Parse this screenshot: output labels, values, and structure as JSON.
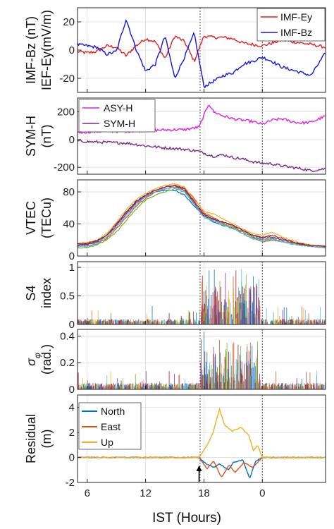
{
  "figure": {
    "xlabel": "IST (Hours)",
    "xticks": [
      "6",
      "12",
      "18",
      "0"
    ],
    "xtick_hours": [
      6,
      12,
      18,
      24
    ],
    "x_range": [
      5,
      30.5
    ],
    "event_lines_hours": [
      17.6,
      24.0
    ],
    "arrow_hour": 17.5
  },
  "colors": {
    "imf_ey": "#e01f1f",
    "imf_bz": "#1414e0",
    "asy_h": "#e01fe0",
    "sym_h": "#7a2a8c",
    "north": "#0072bd",
    "east": "#d95319",
    "up": "#edb120",
    "vtec_palette": [
      "#0072bd",
      "#d95319",
      "#edb120",
      "#7e2f8e",
      "#77ac30",
      "#4dbeee",
      "#a2142f"
    ]
  },
  "chart_data": [
    {
      "id": "imf",
      "type": "line",
      "ylabel_lines": [
        "IMF-Bz (nT)",
        "IEF-Ey(mV/m)"
      ],
      "ylim": [
        -30,
        30
      ],
      "yticks": [
        -20,
        0,
        20
      ],
      "legend_position": "top-right",
      "series": [
        {
          "name": "IMF-Ey",
          "color_key": "imf_ey",
          "x": [
            5,
            6,
            7,
            8,
            9,
            10,
            11,
            12,
            13,
            14,
            15,
            16,
            17,
            18,
            19,
            20,
            21,
            22,
            23,
            24,
            25,
            26,
            27,
            28,
            29,
            30.5
          ],
          "y": [
            -1,
            -2,
            -1,
            3,
            2,
            -4,
            3,
            8,
            6,
            -6,
            10,
            6,
            -8,
            10,
            9,
            9,
            8,
            5,
            4,
            3,
            5,
            7,
            6,
            5,
            4,
            2
          ]
        },
        {
          "name": "IMF-Bz",
          "color_key": "imf_bz",
          "x": [
            5,
            6,
            7,
            8,
            9,
            10,
            11,
            12,
            13,
            14,
            15,
            16,
            17,
            18,
            19,
            20,
            21,
            22,
            23,
            24,
            25,
            26,
            27,
            28,
            29,
            30.5
          ],
          "y": [
            4,
            3,
            2,
            -3,
            -1,
            22,
            1,
            -15,
            -10,
            10,
            -20,
            -5,
            12,
            -26,
            -22,
            -18,
            -16,
            -10,
            -8,
            -5,
            -8,
            -12,
            -14,
            -16,
            -18,
            -2
          ]
        }
      ]
    },
    {
      "id": "sym",
      "type": "line",
      "ylabel_lines": [
        "SYM-H",
        "(nT)"
      ],
      "ylim": [
        -250,
        300
      ],
      "yticks": [
        -200,
        0,
        200
      ],
      "legend_position": "top-left",
      "series": [
        {
          "name": "ASY-H",
          "color_key": "asy_h",
          "x": [
            5,
            6,
            8,
            10,
            12,
            14,
            16,
            17.5,
            18.5,
            19,
            20,
            21,
            22,
            23,
            24,
            25,
            26,
            27,
            28,
            29,
            30.5
          ],
          "y": [
            50,
            55,
            60,
            60,
            65,
            70,
            72,
            90,
            260,
            200,
            170,
            150,
            140,
            130,
            110,
            140,
            150,
            130,
            120,
            125,
            170
          ]
        },
        {
          "name": "SYM-H",
          "color_key": "sym_h",
          "x": [
            5,
            6,
            8,
            10,
            12,
            14,
            16,
            17.5,
            18.5,
            19,
            20,
            21,
            22,
            23,
            24,
            25,
            26,
            27,
            28,
            29,
            30.5
          ],
          "y": [
            -10,
            -15,
            -20,
            -25,
            -45,
            -60,
            -70,
            -85,
            -110,
            -120,
            -110,
            -130,
            -140,
            -160,
            -170,
            -175,
            -190,
            -200,
            -210,
            -225,
            -210
          ]
        }
      ]
    },
    {
      "id": "vtec",
      "type": "line",
      "ylabel_lines": [
        "VTEC",
        "(TECu)"
      ],
      "ylim": [
        0,
        95
      ],
      "yticks": [
        0,
        40,
        80
      ],
      "series": [
        {
          "x": [
            5,
            6,
            7,
            8,
            9,
            10,
            11,
            12,
            13,
            14,
            15,
            16,
            17,
            18,
            19,
            20,
            21,
            22,
            23,
            24,
            25,
            26,
            27,
            28,
            29,
            30.5
          ],
          "y": [
            14,
            14,
            18,
            26,
            40,
            55,
            68,
            76,
            80,
            82,
            82,
            76,
            62,
            50,
            42,
            38,
            35,
            30,
            24,
            20,
            22,
            18,
            16,
            14,
            12,
            12
          ]
        },
        {
          "x": [
            5,
            6,
            7,
            8,
            9,
            10,
            11,
            12,
            13,
            14,
            15,
            16,
            17,
            18,
            19,
            20,
            21,
            22,
            23,
            24,
            25,
            26,
            27,
            28,
            29,
            30.5
          ],
          "y": [
            12,
            13,
            15,
            22,
            34,
            48,
            62,
            72,
            80,
            84,
            86,
            84,
            72,
            54,
            48,
            40,
            36,
            28,
            22,
            18,
            20,
            18,
            16,
            14,
            13,
            11
          ]
        },
        {
          "x": [
            5,
            6,
            7,
            8,
            9,
            10,
            11,
            12,
            13,
            14,
            15,
            16,
            17,
            18,
            19,
            20,
            21,
            22,
            23,
            24,
            25,
            26,
            27,
            28,
            29,
            30.5
          ],
          "y": [
            16,
            17,
            20,
            28,
            42,
            58,
            70,
            78,
            84,
            88,
            90,
            86,
            70,
            56,
            52,
            46,
            40,
            34,
            28,
            26,
            30,
            24,
            20,
            16,
            14,
            12
          ]
        },
        {
          "x": [
            5,
            6,
            7,
            8,
            9,
            10,
            11,
            12,
            13,
            14,
            15,
            16,
            17,
            18,
            19,
            20,
            21,
            22,
            23,
            24,
            25,
            26,
            27,
            28,
            29,
            30.5
          ],
          "y": [
            14,
            15,
            17,
            24,
            38,
            52,
            66,
            74,
            82,
            86,
            88,
            82,
            66,
            50,
            46,
            42,
            38,
            32,
            26,
            22,
            24,
            20,
            17,
            15,
            13,
            12
          ]
        },
        {
          "x": [
            5,
            6,
            7,
            8,
            9,
            10,
            11,
            12,
            13,
            14,
            15,
            16,
            17,
            18,
            19,
            20,
            21,
            22,
            23,
            24,
            25,
            26,
            27,
            28,
            29,
            30.5
          ],
          "y": [
            10,
            11,
            14,
            20,
            30,
            44,
            58,
            70,
            76,
            80,
            84,
            80,
            68,
            52,
            44,
            40,
            36,
            30,
            24,
            20,
            22,
            18,
            16,
            13,
            12,
            10
          ]
        },
        {
          "x": [
            5,
            6,
            7,
            8,
            9,
            10,
            11,
            12,
            13,
            14,
            15,
            16,
            17,
            18,
            19,
            20,
            21,
            22,
            23,
            24,
            25,
            26,
            27,
            28,
            29,
            30.5
          ],
          "y": [
            12,
            12,
            16,
            24,
            36,
            50,
            64,
            74,
            80,
            84,
            86,
            80,
            64,
            48,
            44,
            38,
            34,
            28,
            22,
            19,
            21,
            18,
            15,
            13,
            12,
            11
          ]
        },
        {
          "x": [
            5,
            6,
            7,
            8,
            9,
            10,
            11,
            12,
            13,
            14,
            15,
            16,
            17,
            18,
            19,
            20,
            21,
            22,
            23,
            24,
            25,
            26,
            27,
            28,
            29,
            30.5
          ],
          "y": [
            15,
            16,
            19,
            26,
            40,
            54,
            68,
            76,
            82,
            86,
            88,
            84,
            68,
            52,
            46,
            42,
            38,
            32,
            26,
            23,
            26,
            22,
            18,
            15,
            13,
            12
          ]
        }
      ]
    },
    {
      "id": "s4",
      "type": "scatter",
      "ylabel_lines": [
        "S4",
        "index"
      ],
      "ylim": [
        0,
        1.1
      ],
      "yticks": [
        0,
        0.5,
        1
      ],
      "ytick_labels": [
        "0",
        "0.5",
        "1"
      ],
      "baseline": 0.08,
      "burst_window_hours": [
        17.6,
        23.8
      ],
      "burst_peak": 1.0
    },
    {
      "id": "sigma",
      "type": "scatter",
      "ylabel_lines": [
        "σ",
        "(rad.)"
      ],
      "ylabel_subscript": "φ",
      "ylim": [
        0,
        0.45
      ],
      "yticks": [
        0,
        0.2,
        0.4
      ],
      "ytick_labels": [
        "0",
        "0.2",
        "0.4"
      ],
      "baseline": 0.04,
      "burst_window_hours": [
        17.6,
        23.8
      ],
      "burst_peak": 0.4
    },
    {
      "id": "residual",
      "type": "line",
      "ylabel_lines": [
        "Residual",
        "(m)"
      ],
      "ylim": [
        -2,
        5
      ],
      "yticks": [
        -2,
        0,
        2,
        4
      ],
      "legend_position": "top-left",
      "series": [
        {
          "name": "North",
          "color_key": "north",
          "x": [
            5,
            17.5,
            18.2,
            19.0,
            19.6,
            20.5,
            21.0,
            22.0,
            22.7,
            23.3,
            24.0,
            30.5
          ],
          "y": [
            0,
            0,
            -0.5,
            -0.8,
            -0.5,
            -1.0,
            -0.4,
            -0.2,
            -1.7,
            -0.3,
            0,
            0
          ]
        },
        {
          "name": "East",
          "color_key": "east",
          "x": [
            5,
            17.5,
            18.3,
            19.0,
            19.8,
            20.6,
            21.2,
            22.1,
            23.0,
            24.0,
            30.5
          ],
          "y": [
            0,
            0,
            -0.9,
            -0.3,
            -1.6,
            -0.6,
            -1.2,
            -0.4,
            -0.8,
            0,
            0
          ]
        },
        {
          "name": "Up",
          "color_key": "up",
          "x": [
            5,
            17.5,
            18.2,
            18.9,
            19.6,
            20.1,
            20.9,
            21.8,
            22.6,
            23.1,
            23.5,
            24.0,
            30.5
          ],
          "y": [
            0,
            0,
            0.8,
            1.9,
            3.9,
            2.6,
            2.1,
            2.4,
            1.8,
            0.5,
            1.0,
            0,
            0
          ]
        }
      ]
    }
  ]
}
